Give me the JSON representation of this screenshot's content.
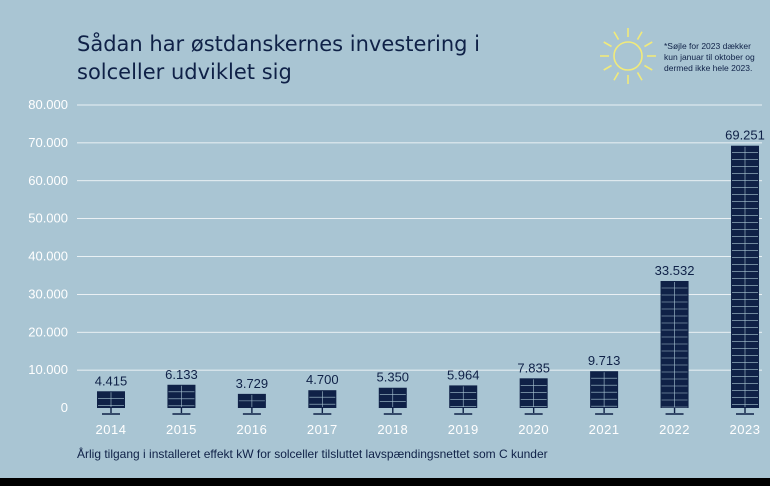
{
  "chart_data": {
    "type": "bar",
    "title": "Sådan har østdanskernes investering i solceller udviklet sig",
    "note": "*Søjle for 2023 dækker kun januar til oktober og dermed ikke hele 2023.",
    "caption": "Årlig tilgang i installeret effekt kW for solceller tilsluttet lavspændingsnettet som C kunder",
    "categories": [
      "2014",
      "2015",
      "2016",
      "2017",
      "2018",
      "2019",
      "2020",
      "2021",
      "2022",
      "2023"
    ],
    "values": [
      4415,
      6133,
      3729,
      4700,
      5350,
      5964,
      7835,
      9713,
      33532,
      69251
    ],
    "value_labels": [
      "4.415",
      "6.133",
      "3.729",
      "4.700",
      "5.350",
      "5.964",
      "7.835",
      "9.713",
      "33.532",
      "69.251"
    ],
    "yticks": [
      "0",
      "10.000",
      "20.000",
      "30.000",
      "40.000",
      "50.000",
      "60.000",
      "70.000",
      "80.000"
    ],
    "ylim": [
      0,
      80000
    ],
    "xlabel": "",
    "ylabel": "",
    "grid": true,
    "colors": {
      "background": "#a9c5d3",
      "bar": "#0f2147",
      "panel_lines": "#a9c5d3",
      "grid": "#ffffff",
      "sun": "#f1ea7a",
      "text_dark": "#0f2147",
      "text_light": "#ffffff"
    },
    "icons": [
      "sun-icon"
    ]
  }
}
